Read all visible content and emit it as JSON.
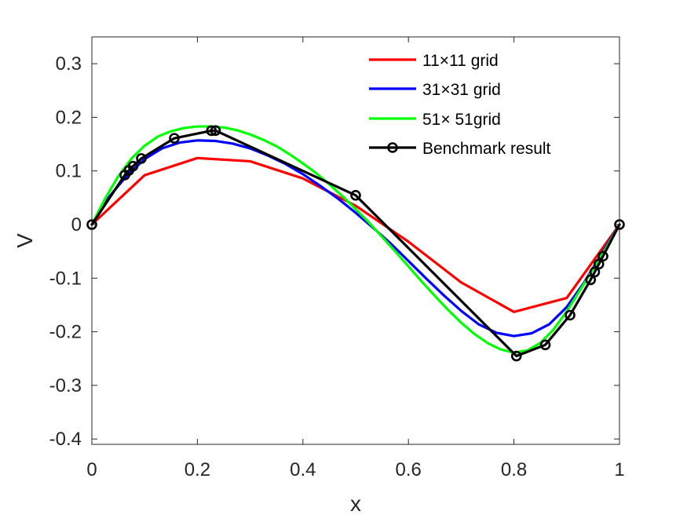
{
  "chart_data": {
    "type": "line",
    "title": "",
    "xlabel": "x",
    "ylabel": "V",
    "xlim": [
      0,
      1
    ],
    "ylim": [
      -0.41,
      0.35
    ],
    "xticks": [
      0,
      0.2,
      0.4,
      0.6,
      0.8,
      1
    ],
    "yticks": [
      -0.4,
      -0.3,
      -0.2,
      -0.1,
      0,
      0.1,
      0.2,
      0.3
    ],
    "xtick_labels": [
      "0",
      "0.2",
      "0.4",
      "0.6",
      "0.8",
      "1"
    ],
    "ytick_labels": [
      "-0.4",
      "-0.3",
      "-0.2",
      "-0.1",
      "0",
      "0.1",
      "0.2",
      "0.3"
    ],
    "grid": false,
    "legend_position": "top-right",
    "series": [
      {
        "name": "11×11 grid",
        "color": "#ff0000",
        "marker": "none",
        "x": [
          0,
          0.1,
          0.2,
          0.3,
          0.4,
          0.5,
          0.6,
          0.7,
          0.8,
          0.9,
          1.0
        ],
        "y": [
          0,
          0.092,
          0.124,
          0.118,
          0.086,
          0.035,
          -0.032,
          -0.108,
          -0.163,
          -0.137,
          0
        ]
      },
      {
        "name": "31×31 grid",
        "color": "#0000ff",
        "marker": "none",
        "x": [
          0,
          0.033,
          0.067,
          0.1,
          0.133,
          0.167,
          0.2,
          0.233,
          0.267,
          0.3,
          0.333,
          0.367,
          0.4,
          0.433,
          0.467,
          0.5,
          0.533,
          0.567,
          0.6,
          0.633,
          0.667,
          0.7,
          0.733,
          0.767,
          0.8,
          0.833,
          0.867,
          0.9,
          0.933,
          0.967,
          1.0
        ],
        "y": [
          0,
          0.052,
          0.092,
          0.122,
          0.142,
          0.153,
          0.157,
          0.156,
          0.151,
          0.142,
          0.129,
          0.113,
          0.094,
          0.072,
          0.048,
          0.022,
          -0.006,
          -0.036,
          -0.068,
          -0.1,
          -0.132,
          -0.161,
          -0.186,
          -0.202,
          -0.208,
          -0.203,
          -0.186,
          -0.154,
          -0.108,
          -0.053,
          0
        ]
      },
      {
        "name": "51× 51grid",
        "color": "#00ff00",
        "marker": "none",
        "x": [
          0,
          0.025,
          0.05,
          0.075,
          0.1,
          0.125,
          0.15,
          0.175,
          0.2,
          0.225,
          0.25,
          0.275,
          0.3,
          0.325,
          0.35,
          0.375,
          0.4,
          0.425,
          0.45,
          0.475,
          0.5,
          0.525,
          0.55,
          0.575,
          0.6,
          0.625,
          0.65,
          0.675,
          0.7,
          0.725,
          0.75,
          0.775,
          0.8,
          0.825,
          0.85,
          0.875,
          0.9,
          0.925,
          0.95,
          0.975,
          1.0
        ],
        "y": [
          0,
          0.048,
          0.09,
          0.123,
          0.147,
          0.164,
          0.174,
          0.18,
          0.183,
          0.183,
          0.181,
          0.176,
          0.168,
          0.158,
          0.146,
          0.131,
          0.114,
          0.096,
          0.075,
          0.053,
          0.029,
          0.004,
          -0.023,
          -0.05,
          -0.078,
          -0.106,
          -0.133,
          -0.159,
          -0.183,
          -0.204,
          -0.221,
          -0.233,
          -0.239,
          -0.235,
          -0.221,
          -0.196,
          -0.162,
          -0.123,
          -0.083,
          -0.043,
          0
        ]
      },
      {
        "name": "Benchmark result",
        "color": "#000000",
        "marker": "circle",
        "x": [
          0,
          0.0625,
          0.0703,
          0.0781,
          0.0938,
          0.1563,
          0.2266,
          0.2344,
          0.5,
          0.8047,
          0.8594,
          0.9063,
          0.9453,
          0.9531,
          0.9609,
          0.9688,
          1.0
        ],
        "y": [
          0,
          0.0923,
          0.101,
          0.1089,
          0.1232,
          0.1609,
          0.1751,
          0.1753,
          0.0545,
          -0.2453,
          -0.2245,
          -0.1691,
          -0.1031,
          -0.0886,
          -0.0739,
          -0.0591,
          0
        ]
      }
    ]
  }
}
